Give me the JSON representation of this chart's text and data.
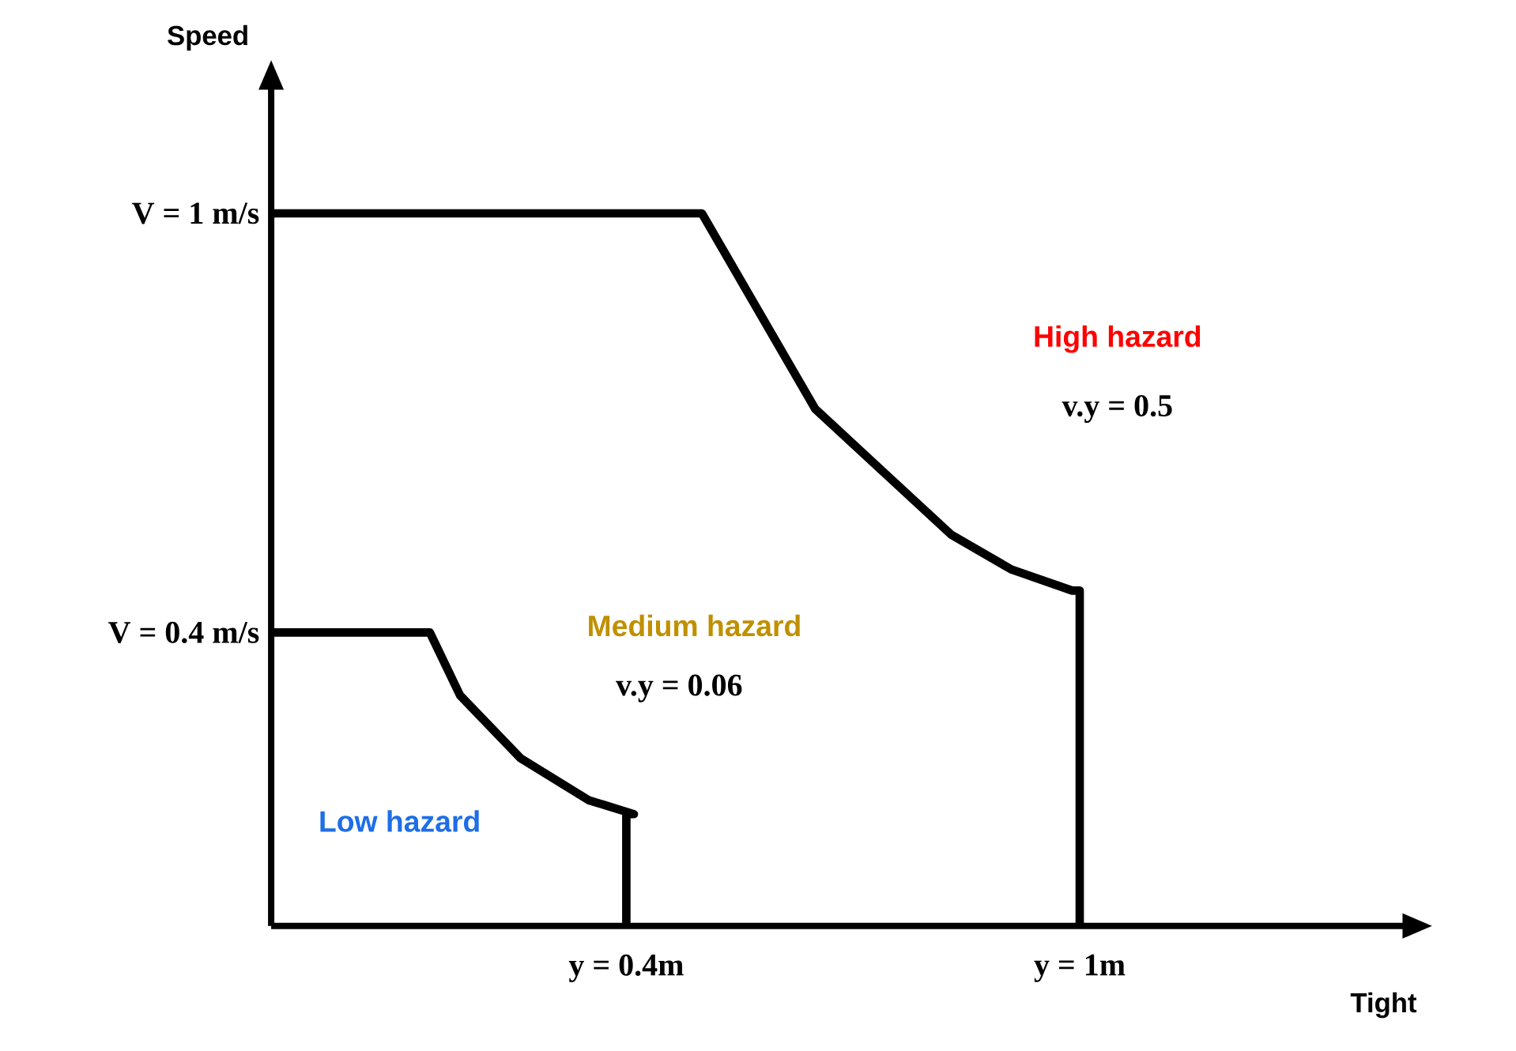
{
  "chart_data": {
    "type": "line",
    "xlabel": "Tight",
    "ylabel": "Speed",
    "xlim": [
      -0.07,
      1.43
    ],
    "ylim": [
      -0.02,
      1.18
    ],
    "xticks": [
      {
        "value": 0.4,
        "label": "y = 0.4m"
      },
      {
        "value": 1,
        "label": "y = 1m"
      }
    ],
    "yticks": [
      {
        "value": 0.4,
        "label": "V = 0.4 m/s"
      },
      {
        "value": 1,
        "label": "V = 1 m/s"
      }
    ],
    "series": [
      {
        "color": "#000000",
        "x": [
          -0.07,
          0.5,
          0.65,
          0.74,
          0.83,
          0.91,
          0.99,
          1.0,
          1.0
        ],
        "values": [
          1.0,
          1.0,
          0.72,
          0.63,
          0.54,
          0.49,
          0.46,
          0.46,
          -0.02
        ]
      },
      {
        "color": "#000000",
        "x": [
          -0.07,
          0.14,
          0.18,
          0.26,
          0.35,
          0.41,
          0.4,
          0.4
        ],
        "values": [
          0.4,
          0.4,
          0.31,
          0.22,
          0.16,
          0.14,
          0.14,
          -0.02
        ]
      }
    ],
    "annotations": [
      "High hazard",
      "v.y = 0.5",
      "Medium hazard",
      "v.y = 0.06",
      "Low hazard"
    ],
    "grid": false,
    "marker": "none",
    "line_style": "solid"
  }
}
